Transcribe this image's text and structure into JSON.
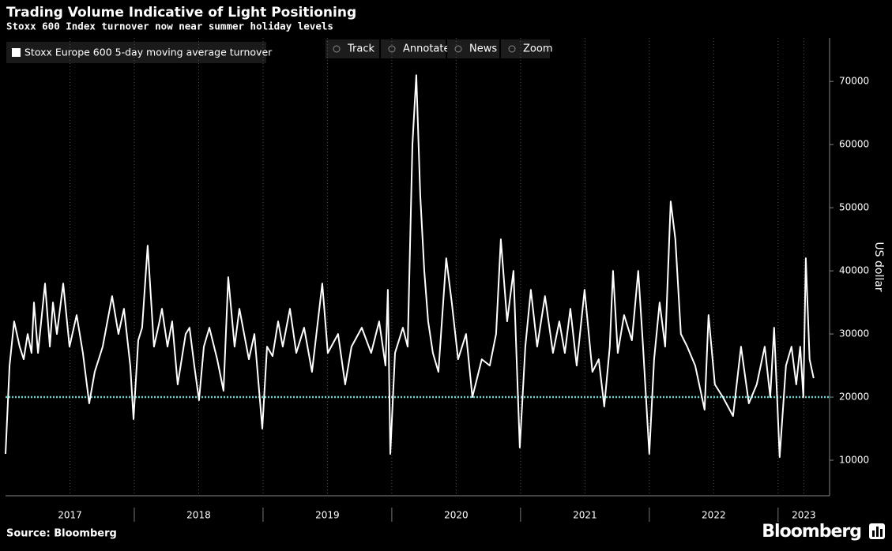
{
  "chart_data": {
    "type": "line",
    "title": "Trading Volume Indicative of Light Positioning",
    "subtitle": "Stoxx 600 Index turnover now near summer holiday levels",
    "y_label": "US dollar",
    "source": "Source: Bloomberg",
    "brand": "Bloomberg",
    "toolbar": [
      "Track",
      "Annotate",
      "News",
      "Zoom"
    ],
    "x": [
      2017.0,
      2017.031,
      2017.067,
      2017.11,
      2017.141,
      2017.172,
      2017.202,
      2017.221,
      2017.252,
      2017.307,
      2017.344,
      2017.368,
      2017.399,
      2017.448,
      2017.497,
      2017.552,
      2017.601,
      2017.65,
      2017.693,
      2017.755,
      2017.828,
      2017.877,
      2017.92,
      2017.969,
      2017.994,
      2018.031,
      2018.061,
      2018.104,
      2018.153,
      2018.196,
      2018.215,
      2018.258,
      2018.294,
      2018.337,
      2018.399,
      2018.429,
      2018.466,
      2018.503,
      2018.54,
      2018.583,
      2018.644,
      2018.693,
      2018.73,
      2018.779,
      2018.816,
      2018.89,
      2018.933,
      2018.994,
      2019.031,
      2019.074,
      2019.117,
      2019.153,
      2019.209,
      2019.258,
      2019.319,
      2019.38,
      2019.46,
      2019.503,
      2019.583,
      2019.638,
      2019.687,
      2019.767,
      2019.84,
      2019.902,
      2019.951,
      2019.969,
      2019.988,
      2020.025,
      2020.086,
      2020.123,
      2020.16,
      2020.19,
      2020.221,
      2020.252,
      2020.282,
      2020.319,
      2020.362,
      2020.423,
      2020.466,
      2020.515,
      2020.577,
      2020.626,
      2020.699,
      2020.761,
      2020.81,
      2020.847,
      2020.896,
      2020.945,
      2020.994,
      2021.037,
      2021.08,
      2021.129,
      2021.19,
      2021.252,
      2021.301,
      2021.344,
      2021.387,
      2021.436,
      2021.497,
      2021.558,
      2021.607,
      2021.65,
      2021.693,
      2021.718,
      2021.755,
      2021.804,
      2021.865,
      2021.914,
      2021.951,
      2022.0,
      2022.037,
      2022.08,
      2022.123,
      2022.166,
      2022.202,
      2022.245,
      2022.294,
      2022.356,
      2022.429,
      2022.46,
      2022.509,
      2022.571,
      2022.65,
      2022.712,
      2022.773,
      2022.834,
      2022.896,
      2022.939,
      2022.969,
      2023.012,
      2023.061,
      2023.104,
      2023.141,
      2023.172,
      2023.196,
      2023.215,
      2023.245,
      2023.276
    ],
    "series": [
      {
        "name": "Stoxx Europe 600 5-day moving average turnover",
        "color": "#ffffff",
        "values": [
          11000,
          25000,
          32000,
          28000,
          26000,
          30000,
          27000,
          35000,
          27000,
          38000,
          28000,
          35000,
          30000,
          38000,
          28000,
          33000,
          27000,
          19000,
          24000,
          28000,
          36000,
          30000,
          34000,
          25000,
          16500,
          29000,
          31000,
          44000,
          28000,
          32000,
          34000,
          28000,
          32000,
          22000,
          30000,
          31000,
          25000,
          19500,
          28000,
          31000,
          26000,
          21000,
          39000,
          28000,
          34000,
          26000,
          30000,
          15000,
          28000,
          26500,
          32000,
          28000,
          34000,
          27000,
          31000,
          24000,
          38000,
          27000,
          30000,
          22000,
          28000,
          31000,
          27000,
          32000,
          25000,
          37000,
          11000,
          27000,
          31000,
          28000,
          60000,
          71000,
          52000,
          40000,
          32000,
          27000,
          24000,
          42000,
          35000,
          26000,
          30000,
          20000,
          26000,
          25000,
          30000,
          45000,
          32000,
          40000,
          12000,
          28000,
          37000,
          28000,
          36000,
          27000,
          32000,
          27000,
          34000,
          25000,
          37000,
          24000,
          26000,
          18500,
          28000,
          40000,
          27000,
          33000,
          29000,
          40000,
          28000,
          11000,
          26000,
          35000,
          28000,
          51000,
          45000,
          30000,
          28000,
          25000,
          18000,
          33000,
          22000,
          20000,
          17000,
          28000,
          19000,
          22000,
          28000,
          20000,
          31000,
          10500,
          25000,
          28000,
          22000,
          28000,
          20000,
          42000,
          26000,
          23000
        ]
      }
    ],
    "reference_line": {
      "value": 20000,
      "color": "#5fd3d0"
    },
    "xlim": [
      2017.0,
      2023.4
    ],
    "xticks": [
      {
        "value": 2017.5,
        "label": "2017"
      },
      {
        "value": 2018.5,
        "label": "2018"
      },
      {
        "value": 2019.5,
        "label": "2019"
      },
      {
        "value": 2020.5,
        "label": "2020"
      },
      {
        "value": 2021.5,
        "label": "2021"
      },
      {
        "value": 2022.5,
        "label": "2022"
      },
      {
        "value": 2023.2,
        "label": "2023"
      }
    ],
    "ylim": [
      4750,
      76900
    ],
    "yticks": [
      10000,
      20000,
      30000,
      40000,
      50000,
      60000,
      70000
    ],
    "grid": true
  }
}
